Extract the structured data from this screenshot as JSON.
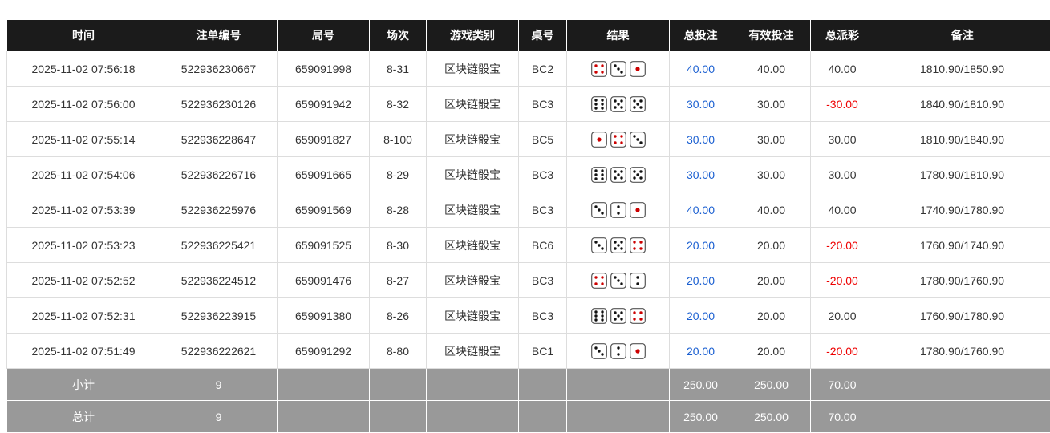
{
  "headers": [
    "时间",
    "注单编号",
    "局号",
    "场次",
    "游戏类别",
    "桌号",
    "结果",
    "总投注",
    "有效投注",
    "总派彩",
    "备注"
  ],
  "rows": [
    {
      "time": "2025-11-02 07:56:18",
      "order": "522936230667",
      "round": "659091998",
      "session": "8-31",
      "game": "区块链骰宝",
      "table": "BC2",
      "dice": [
        4,
        3,
        1
      ],
      "bet": "40.00",
      "valid": "40.00",
      "payout": "40.00",
      "payout_neg": false,
      "note": "1810.90/1850.90"
    },
    {
      "time": "2025-11-02 07:56:00",
      "order": "522936230126",
      "round": "659091942",
      "session": "8-32",
      "game": "区块链骰宝",
      "table": "BC3",
      "dice": [
        6,
        5,
        5
      ],
      "bet": "30.00",
      "valid": "30.00",
      "payout": "-30.00",
      "payout_neg": true,
      "note": "1840.90/1810.90"
    },
    {
      "time": "2025-11-02 07:55:14",
      "order": "522936228647",
      "round": "659091827",
      "session": "8-100",
      "game": "区块链骰宝",
      "table": "BC5",
      "dice": [
        1,
        4,
        3
      ],
      "bet": "30.00",
      "valid": "30.00",
      "payout": "30.00",
      "payout_neg": false,
      "note": "1810.90/1840.90"
    },
    {
      "time": "2025-11-02 07:54:06",
      "order": "522936226716",
      "round": "659091665",
      "session": "8-29",
      "game": "区块链骰宝",
      "table": "BC3",
      "dice": [
        6,
        5,
        5
      ],
      "bet": "30.00",
      "valid": "30.00",
      "payout": "30.00",
      "payout_neg": false,
      "note": "1780.90/1810.90"
    },
    {
      "time": "2025-11-02 07:53:39",
      "order": "522936225976",
      "round": "659091569",
      "session": "8-28",
      "game": "区块链骰宝",
      "table": "BC3",
      "dice": [
        3,
        2,
        1
      ],
      "bet": "40.00",
      "valid": "40.00",
      "payout": "40.00",
      "payout_neg": false,
      "note": "1740.90/1780.90"
    },
    {
      "time": "2025-11-02 07:53:23",
      "order": "522936225421",
      "round": "659091525",
      "session": "8-30",
      "game": "区块链骰宝",
      "table": "BC6",
      "dice": [
        3,
        5,
        4
      ],
      "bet": "20.00",
      "valid": "20.00",
      "payout": "-20.00",
      "payout_neg": true,
      "note": "1760.90/1740.90"
    },
    {
      "time": "2025-11-02 07:52:52",
      "order": "522936224512",
      "round": "659091476",
      "session": "8-27",
      "game": "区块链骰宝",
      "table": "BC3",
      "dice": [
        4,
        3,
        2
      ],
      "bet": "20.00",
      "valid": "20.00",
      "payout": "-20.00",
      "payout_neg": true,
      "note": "1780.90/1760.90"
    },
    {
      "time": "2025-11-02 07:52:31",
      "order": "522936223915",
      "round": "659091380",
      "session": "8-26",
      "game": "区块链骰宝",
      "table": "BC3",
      "dice": [
        6,
        5,
        4
      ],
      "bet": "20.00",
      "valid": "20.00",
      "payout": "20.00",
      "payout_neg": false,
      "note": "1760.90/1780.90"
    },
    {
      "time": "2025-11-02 07:51:49",
      "order": "522936222621",
      "round": "659091292",
      "session": "8-80",
      "game": "区块链骰宝",
      "table": "BC1",
      "dice": [
        3,
        2,
        1
      ],
      "bet": "20.00",
      "valid": "20.00",
      "payout": "-20.00",
      "payout_neg": true,
      "note": "1780.90/1760.90"
    }
  ],
  "footer": [
    {
      "label": "小计",
      "count": "9",
      "bet": "250.00",
      "valid": "250.00",
      "payout": "70.00"
    },
    {
      "label": "总计",
      "count": "9",
      "bet": "250.00",
      "valid": "250.00",
      "payout": "70.00"
    }
  ],
  "colors": {
    "bet": "#1a5fd1",
    "negative": "#ee0000",
    "header_bg": "#1b1b1b",
    "footer_bg": "#999999"
  }
}
